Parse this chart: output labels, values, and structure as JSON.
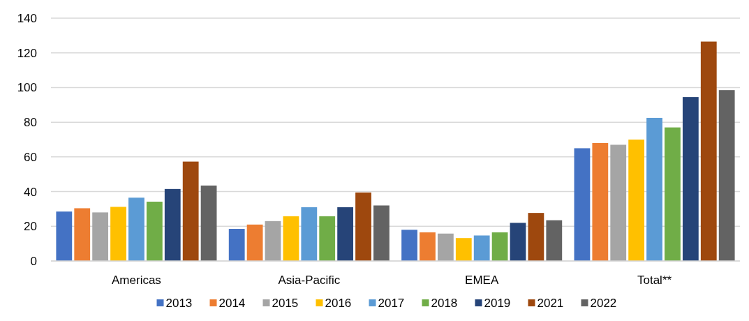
{
  "chart_data": {
    "type": "bar",
    "categories": [
      "Americas",
      "Asia-Pacific",
      "EMEA",
      "Total**"
    ],
    "series": [
      {
        "name": "2013",
        "color": "#4472c4",
        "values": [
          28.5,
          18.5,
          18,
          65
        ]
      },
      {
        "name": "2014",
        "color": "#ed7d31",
        "values": [
          30.4,
          21,
          16.5,
          68
        ]
      },
      {
        "name": "2015",
        "color": "#a5a5a5",
        "values": [
          28,
          23,
          15.8,
          67
        ]
      },
      {
        "name": "2016",
        "color": "#ffc000",
        "values": [
          31.2,
          25.8,
          13.2,
          70
        ]
      },
      {
        "name": "2017",
        "color": "#5b9bd5",
        "values": [
          36.5,
          31,
          14.7,
          82.5
        ]
      },
      {
        "name": "2018",
        "color": "#70ad47",
        "values": [
          34.2,
          25.8,
          16.5,
          77
        ]
      },
      {
        "name": "2019",
        "color": "#264478",
        "values": [
          41.5,
          31,
          22,
          94.5
        ]
      },
      {
        "name": "2021",
        "color": "#9e480e",
        "values": [
          57.3,
          39.5,
          27.7,
          126.5
        ]
      },
      {
        "name": "2022",
        "color": "#636363",
        "values": [
          43.5,
          32,
          23.5,
          98.5
        ]
      }
    ],
    "ylim": [
      0,
      140
    ],
    "yticks": [
      0,
      20,
      40,
      60,
      80,
      100,
      120,
      140
    ],
    "grid": "y",
    "legend": "bottom"
  }
}
